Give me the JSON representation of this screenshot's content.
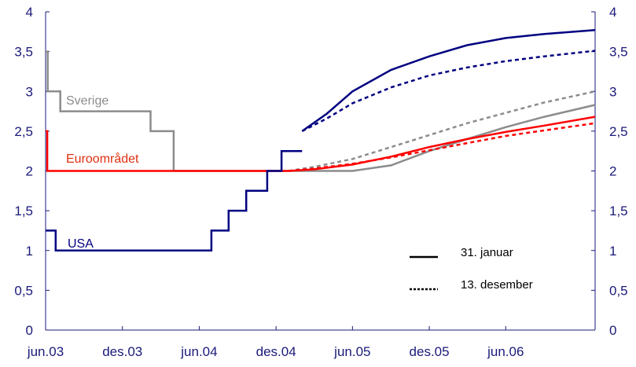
{
  "chart_data": {
    "type": "line",
    "xlim": [
      "2003-06-01",
      "2006-12-31"
    ],
    "ylim": [
      0,
      4
    ],
    "yticks": [
      0,
      0.5,
      1,
      1.5,
      2,
      2.5,
      3,
      3.5,
      4
    ],
    "ytick_labels": [
      "0",
      "0,5",
      "1",
      "1,5",
      "2",
      "2,5",
      "3",
      "3,5",
      "4"
    ],
    "xticks": [
      "2003-06-01",
      "2003-12-01",
      "2004-06-01",
      "2004-12-01",
      "2005-06-01",
      "2005-12-01",
      "2006-06-01"
    ],
    "xtick_labels": [
      "jun.03",
      "des.03",
      "jun.04",
      "des.04",
      "jun.05",
      "des.05",
      "jun.06"
    ],
    "grid": false,
    "legend_position": "bottom-right",
    "legend": [
      {
        "label": "31. januar",
        "style": "solid"
      },
      {
        "label": "13. desember",
        "style": "dotted"
      }
    ],
    "colors": {
      "sverige": "#8c8c8c",
      "euro": "#ff0000",
      "usa": "#000080",
      "axis": "#1a1a7a",
      "label_euro": "#e03010"
    },
    "series": [
      {
        "name": "Sverige",
        "color": "#8c8c8c",
        "style": "step",
        "x": [
          "2003-06-01",
          "2003-06-06",
          "2003-07-06",
          "2004-02-06",
          "2004-04-01",
          "2004-12-31"
        ],
        "y": [
          3.5,
          3.0,
          2.75,
          2.5,
          2.0,
          2.0
        ]
      },
      {
        "name": "Euroområdet",
        "color": "#ff0000",
        "style": "step",
        "x": [
          "2003-06-01",
          "2003-06-05",
          "2004-12-31"
        ],
        "y": [
          2.5,
          2.0,
          2.0
        ]
      },
      {
        "name": "USA",
        "color": "#000080",
        "style": "step",
        "x": [
          "2003-06-01",
          "2003-06-25",
          "2004-06-30",
          "2004-08-10",
          "2004-09-21",
          "2004-11-10",
          "2004-12-14",
          "2005-02-01"
        ],
        "y": [
          1.25,
          1.0,
          1.25,
          1.5,
          1.75,
          2.0,
          2.25,
          2.25
        ]
      }
    ],
    "forecasts": [
      {
        "series": "USA",
        "legend": "31. januar",
        "color": "#000080",
        "style": "solid",
        "x": [
          "2005-02-01",
          "2005-04-01",
          "2005-06-01",
          "2005-09-01",
          "2005-12-01",
          "2006-03-01",
          "2006-06-01",
          "2006-09-01",
          "2006-12-31"
        ],
        "y": [
          2.5,
          2.72,
          3.0,
          3.27,
          3.44,
          3.58,
          3.67,
          3.72,
          3.77
        ]
      },
      {
        "series": "USA",
        "legend": "13. desember",
        "color": "#000080",
        "style": "dotted",
        "x": [
          "2005-02-01",
          "2005-04-01",
          "2005-06-01",
          "2005-09-01",
          "2005-12-01",
          "2006-03-01",
          "2006-06-01",
          "2006-09-01",
          "2006-12-31"
        ],
        "y": [
          2.5,
          2.66,
          2.85,
          3.05,
          3.2,
          3.3,
          3.38,
          3.44,
          3.51
        ]
      },
      {
        "series": "Sverige",
        "legend": "31. januar",
        "color": "#8c8c8c",
        "style": "solid",
        "x": [
          "2004-12-31",
          "2005-06-01",
          "2005-09-01",
          "2005-12-01",
          "2006-03-01",
          "2006-06-01",
          "2006-09-01",
          "2006-12-31"
        ],
        "y": [
          2.0,
          2.0,
          2.07,
          2.25,
          2.4,
          2.55,
          2.68,
          2.83
        ]
      },
      {
        "series": "Sverige",
        "legend": "13. desember",
        "color": "#8c8c8c",
        "style": "dotted",
        "x": [
          "2004-12-31",
          "2005-03-01",
          "2005-06-01",
          "2005-09-01",
          "2005-12-01",
          "2006-03-01",
          "2006-06-01",
          "2006-09-01",
          "2006-12-31"
        ],
        "y": [
          2.0,
          2.05,
          2.15,
          2.3,
          2.45,
          2.6,
          2.73,
          2.86,
          3.0
        ]
      },
      {
        "series": "Euroområdet",
        "legend": "31. januar",
        "color": "#ff0000",
        "style": "solid",
        "x": [
          "2004-12-31",
          "2005-03-01",
          "2005-06-01",
          "2005-09-01",
          "2005-12-01",
          "2006-03-01",
          "2006-06-01",
          "2006-09-01",
          "2006-12-31"
        ],
        "y": [
          2.0,
          2.02,
          2.08,
          2.18,
          2.3,
          2.4,
          2.49,
          2.57,
          2.68
        ]
      },
      {
        "series": "Euroområdet",
        "legend": "13. desember",
        "color": "#ff0000",
        "style": "dotted",
        "x": [
          "2004-12-31",
          "2005-03-01",
          "2005-06-01",
          "2005-09-01",
          "2005-12-01",
          "2006-03-01",
          "2006-06-01",
          "2006-09-01",
          "2006-12-31"
        ],
        "y": [
          2.0,
          2.03,
          2.09,
          2.17,
          2.26,
          2.35,
          2.44,
          2.51,
          2.6
        ]
      }
    ],
    "annotations": [
      {
        "text": "Sverige",
        "series": "Sverige"
      },
      {
        "text": "Euroområdet",
        "series": "Euroområdet"
      },
      {
        "text": "USA",
        "series": "USA"
      }
    ]
  }
}
